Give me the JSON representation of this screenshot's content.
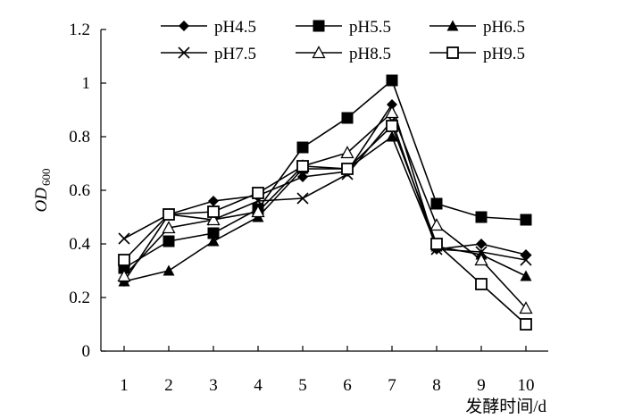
{
  "chart_data": {
    "type": "line",
    "xlabel": "发酵时间/d",
    "ylabel": {
      "main": "OD",
      "subscript": "600"
    },
    "x": [
      1,
      2,
      3,
      4,
      5,
      6,
      7,
      8,
      9,
      10
    ],
    "x_tick_labels": [
      "1",
      "2",
      "3",
      "4",
      "5",
      "6",
      "7",
      "8",
      "9",
      "10"
    ],
    "ylim": [
      0,
      1.2
    ],
    "y_ticks": [
      0,
      0.2,
      0.4,
      0.6,
      0.8,
      1,
      1.2
    ],
    "y_tick_labels": [
      "0",
      "0.2",
      "0.4",
      "0.6",
      "0.8",
      "1",
      "1.2"
    ],
    "grid": false,
    "legend_position": "top-right",
    "series": [
      {
        "name": "pH4.5",
        "marker": "diamond-filled",
        "values": [
          0.26,
          0.51,
          0.56,
          0.58,
          0.65,
          0.67,
          0.92,
          0.38,
          0.4,
          0.36
        ]
      },
      {
        "name": "pH5.5",
        "marker": "square-filled",
        "values": [
          0.31,
          0.41,
          0.44,
          0.53,
          0.76,
          0.87,
          1.01,
          0.55,
          0.5,
          0.49
        ]
      },
      {
        "name": "pH6.5",
        "marker": "triangle-filled",
        "values": [
          0.26,
          0.3,
          0.41,
          0.5,
          0.68,
          0.68,
          0.8,
          0.39,
          0.36,
          0.28
        ]
      },
      {
        "name": "pH7.5",
        "marker": "cross",
        "values": [
          0.42,
          0.51,
          0.49,
          0.56,
          0.57,
          0.66,
          0.86,
          0.38,
          0.37,
          0.34
        ]
      },
      {
        "name": "pH8.5",
        "marker": "triangle-open",
        "values": [
          0.28,
          0.46,
          0.49,
          0.52,
          0.69,
          0.74,
          0.89,
          0.47,
          0.34,
          0.16
        ]
      },
      {
        "name": "pH9.5",
        "marker": "square-open",
        "values": [
          0.34,
          0.51,
          0.52,
          0.59,
          0.69,
          0.68,
          0.84,
          0.4,
          0.25,
          0.1
        ]
      }
    ]
  }
}
